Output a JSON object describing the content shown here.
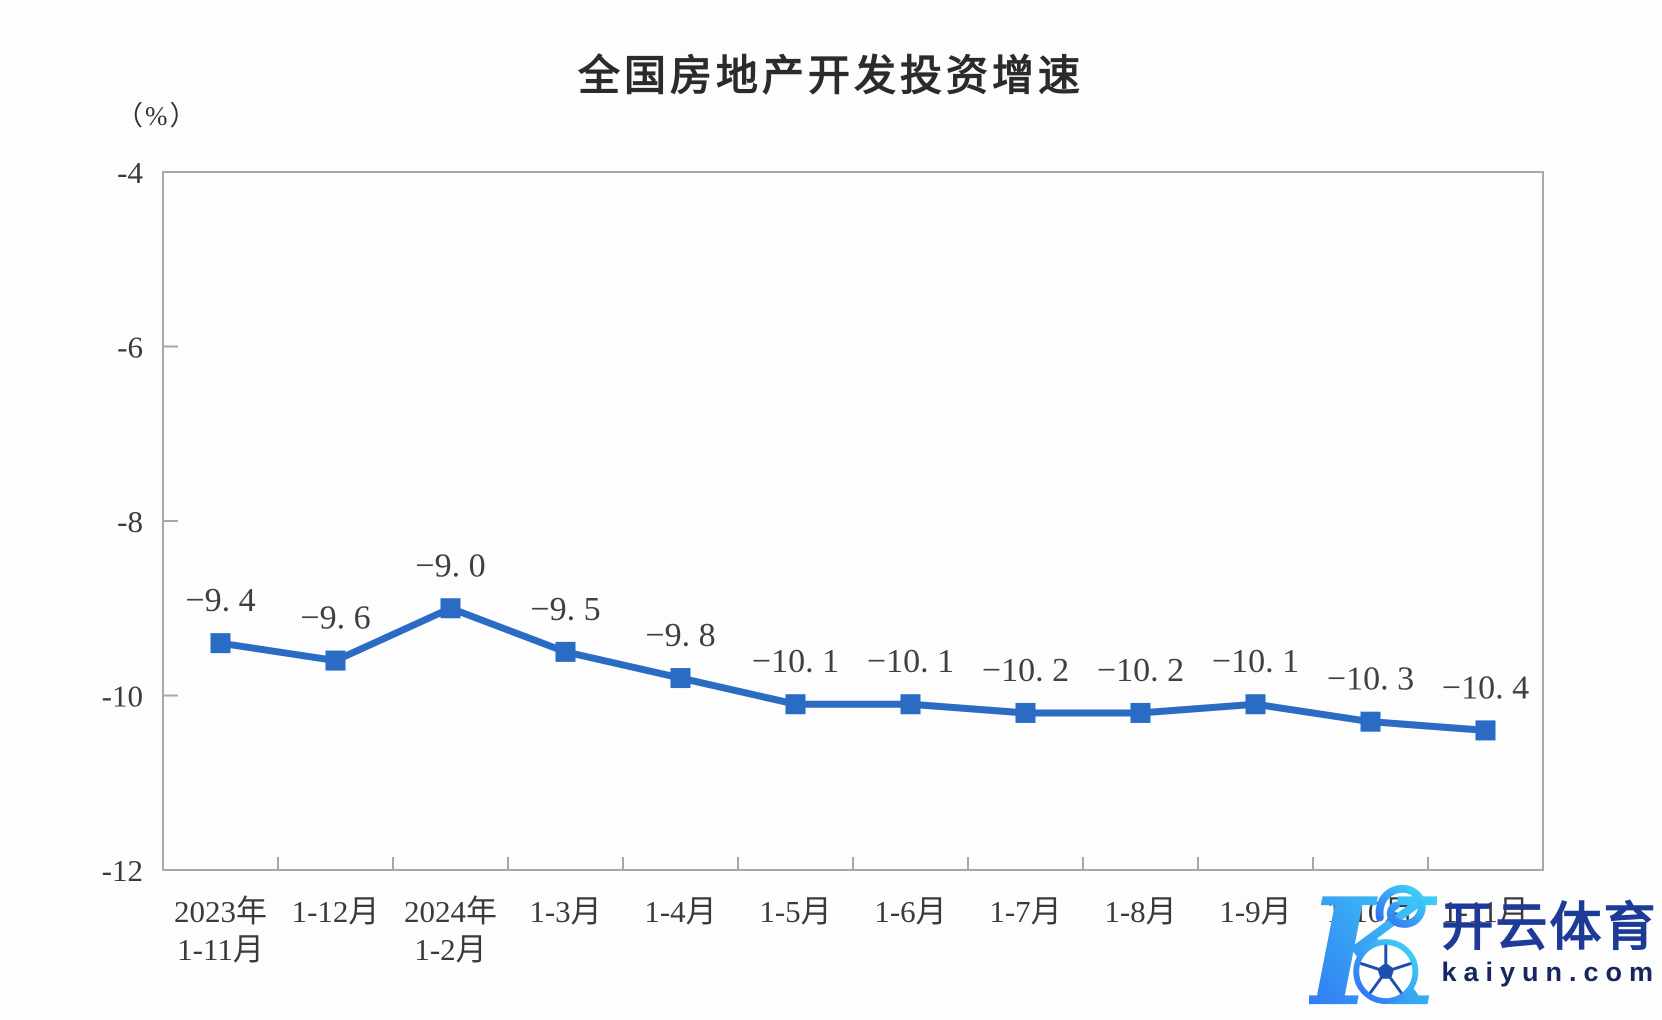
{
  "chart_data": {
    "type": "line",
    "title": "全国房地产开发投资增速",
    "unit_label": "（%）",
    "categories": [
      [
        "2023年",
        "1-11月"
      ],
      [
        "1-12月"
      ],
      [
        "2024年",
        "1-2月"
      ],
      [
        "1-3月"
      ],
      [
        "1-4月"
      ],
      [
        "1-5月"
      ],
      [
        "1-6月"
      ],
      [
        "1-7月"
      ],
      [
        "1-8月"
      ],
      [
        "1-9月"
      ],
      [
        "1-10月"
      ],
      [
        "1-11月"
      ]
    ],
    "values": [
      -9.4,
      -9.6,
      -9.0,
      -9.5,
      -9.8,
      -10.1,
      -10.1,
      -10.2,
      -10.2,
      -10.1,
      -10.3,
      -10.4
    ],
    "point_labels": [
      "−9. 4",
      "−9. 6",
      "−9. 0",
      "−9. 5",
      "−9. 8",
      "−10. 1",
      "−10. 1",
      "−10. 2",
      "−10. 2",
      "−10. 1",
      "−10. 3",
      "−10. 4"
    ],
    "y_ticks": [
      -4,
      -6,
      -8,
      -10,
      -12
    ],
    "y_tick_labels": [
      "-4",
      "-6",
      "-8",
      "-10",
      "-12"
    ],
    "ylim": [
      -12,
      -4
    ],
    "grid": false,
    "legend_position": "none",
    "line_color": "#2a6bc4",
    "marker": "square",
    "marker_size": 20,
    "axis_color": "#a8a8a8",
    "text_color": "#3a3a3a",
    "point_label_color": "#404040"
  },
  "watermark": {
    "brand_name": "开云体育",
    "domain": "kaiyun.com",
    "logo_letter": "K",
    "brand_color": "#1d3a96",
    "domain_color": "#17265e",
    "logo_gradient_start": "#3fd9f6",
    "logo_gradient_end": "#2f6ef2",
    "ball_detail_color": "#1c4fae"
  }
}
